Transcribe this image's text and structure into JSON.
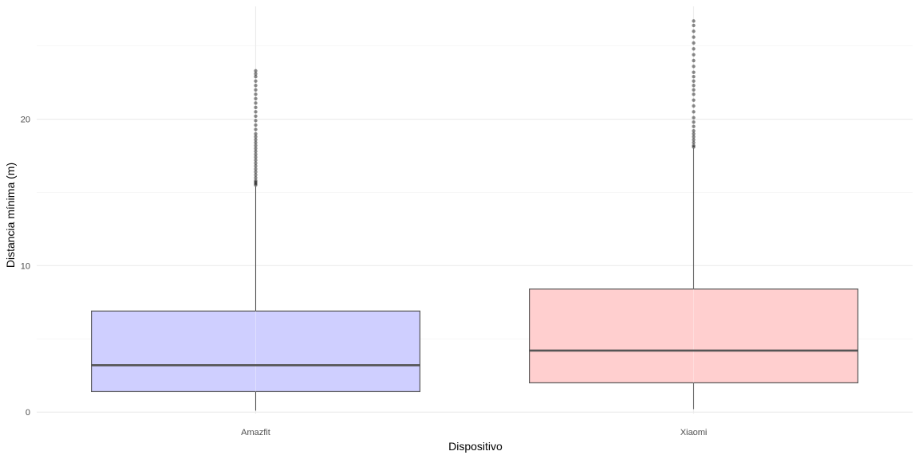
{
  "chart_data": {
    "type": "boxplot",
    "title": "",
    "xlabel": "Dispositivo",
    "ylabel": "Distancia mínima (m)",
    "ylim": [
      -0.1,
      27.7
    ],
    "yticks": [
      0,
      10,
      20
    ],
    "grid": true,
    "legend": "none",
    "categories": [
      "Amazfit",
      "Xiaomi"
    ],
    "series": [
      {
        "category": "Amazfit",
        "min": 0.1,
        "q1": 1.4,
        "median": 3.2,
        "q3": 6.9,
        "whisker_high": 15.4,
        "max": 23.3,
        "outliers": [
          15.5,
          15.6,
          15.7,
          15.8,
          16.0,
          16.2,
          16.4,
          16.6,
          16.8,
          17.0,
          17.2,
          17.4,
          17.6,
          17.8,
          18.0,
          18.2,
          18.4,
          18.6,
          18.8,
          19.0,
          19.3,
          19.6,
          19.9,
          20.2,
          20.5,
          20.8,
          21.1,
          21.4,
          21.7,
          22.0,
          22.3,
          22.6,
          22.9,
          23.1,
          23.3
        ],
        "fill": "#ccccff"
      },
      {
        "category": "Xiaomi",
        "min": 0.2,
        "q1": 2.0,
        "median": 4.2,
        "q3": 8.4,
        "whisker_high": 18.0,
        "max": 26.7,
        "outliers": [
          18.1,
          18.2,
          18.4,
          18.6,
          18.8,
          19.0,
          19.2,
          19.5,
          19.8,
          20.1,
          20.5,
          20.9,
          21.3,
          21.7,
          22.0,
          22.3,
          22.6,
          22.9,
          23.2,
          23.6,
          24.0,
          24.4,
          24.8,
          25.2,
          25.6,
          26.0,
          26.4,
          26.7
        ],
        "fill": "#ffcccc"
      }
    ]
  }
}
